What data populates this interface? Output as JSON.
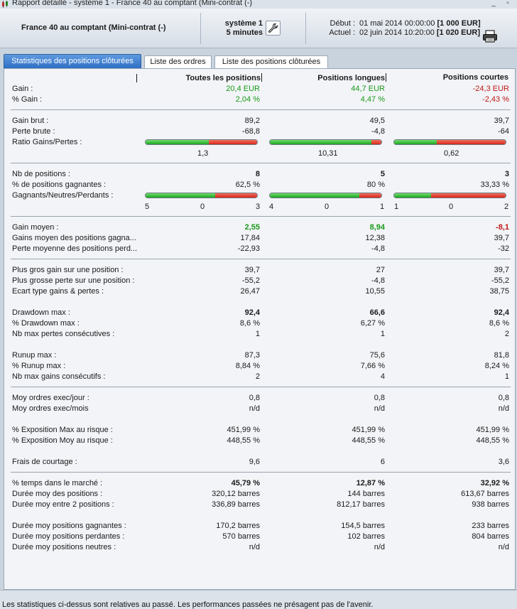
{
  "window": {
    "title": "Rapport détaillé - système 1 - France 40 au comptant (Mini-contrat  (-)"
  },
  "header": {
    "instrument": "France 40 au comptant (Mini-contrat  (-)",
    "system_line1": "système 1",
    "system_line2": "5 minutes",
    "debut_label": "Début :",
    "debut_value": "01 mai 2014 00:00:00",
    "debut_amount": "[1 000 EUR]",
    "actuel_label": "Actuel :",
    "actuel_value": "02 juin 2014 10:20:00",
    "actuel_amount": "[1 020 EUR]"
  },
  "tabs": [
    {
      "label": "Statistiques des positions clôturées"
    },
    {
      "label": "Liste des ordres"
    },
    {
      "label": "Liste des positions clôturées"
    }
  ],
  "columns": [
    "Toutes les positions",
    "Positions longues",
    "Positions courtes"
  ],
  "rows": {
    "gain": {
      "label": "Gain :",
      "values": [
        "20,4 EUR",
        "44,7 EUR",
        "-24,3 EUR"
      ]
    },
    "pct_gain": {
      "label": "% Gain :",
      "values": [
        "2,04 %",
        "4,47 %",
        "-2,43 %"
      ]
    },
    "gain_brut": {
      "label": "Gain brut :",
      "values": [
        "89,2",
        "49,5",
        "39,7"
      ]
    },
    "perte_brute": {
      "label": "Perte brute :",
      "values": [
        "-68,8",
        "-4,8",
        "-64"
      ]
    },
    "ratio": {
      "label": "Ratio Gains/Pertes :",
      "values": [
        "1,3",
        "10,31",
        "0,62"
      ]
    },
    "nb_positions": {
      "label": "Nb de positions :",
      "values": [
        "8",
        "5",
        "3"
      ]
    },
    "pct_gagnantes": {
      "label": "% de positions gagnantes :",
      "values": [
        "62,5 %",
        "80 %",
        "33,33 %"
      ]
    },
    "gnp": {
      "label": "Gagnants/Neutres/Perdants :",
      "values": [
        {
          "g": "5",
          "n": "0",
          "p": "3"
        },
        {
          "g": "4",
          "n": "0",
          "p": "1"
        },
        {
          "g": "1",
          "n": "0",
          "p": "2"
        }
      ]
    },
    "gain_moyen": {
      "label": "Gain moyen :",
      "values": [
        "2,55",
        "8,94",
        "-8,1"
      ]
    },
    "gains_moyen_gagn": {
      "label": "Gains moyen des positions gagna...",
      "values": [
        "17,84",
        "12,38",
        "39,7"
      ]
    },
    "perte_moy_perd": {
      "label": "Perte moyenne des positions perd...",
      "values": [
        "-22,93",
        "-4,8",
        "-32"
      ]
    },
    "plus_gros_gain": {
      "label": "Plus gros gain sur une position :",
      "values": [
        "39,7",
        "27",
        "39,7"
      ]
    },
    "plus_grosse_perte": {
      "label": "Plus grosse perte sur une position :",
      "values": [
        "-55,2",
        "-4,8",
        "-55,2"
      ]
    },
    "ecart_type": {
      "label": "Ecart type gains & pertes :",
      "values": [
        "26,47",
        "10,55",
        "38,75"
      ]
    },
    "drawdown": {
      "label": "Drawdown max :",
      "values": [
        "92,4",
        "66,6",
        "92,4"
      ]
    },
    "pct_drawdown": {
      "label": "% Drawdown max :",
      "values": [
        "8,6 %",
        "6,27 %",
        "8,6 %"
      ]
    },
    "nb_pertes_consec": {
      "label": "Nb max pertes consécutives :",
      "values": [
        "1",
        "1",
        "2"
      ]
    },
    "runup": {
      "label": "Runup max :",
      "values": [
        "87,3",
        "75,6",
        "81,8"
      ]
    },
    "pct_runup": {
      "label": "% Runup max :",
      "values": [
        "8,84 %",
        "7,66 %",
        "8,24 %"
      ]
    },
    "nb_gains_consec": {
      "label": "Nb max gains consécutifs :",
      "values": [
        "2",
        "4",
        "1"
      ]
    },
    "moy_jour": {
      "label": "Moy ordres exec/jour :",
      "values": [
        "0,8",
        "0,8",
        "0,8"
      ]
    },
    "moy_mois": {
      "label": "Moy ordres exec/mois",
      "values": [
        "n/d",
        "n/d",
        "n/d"
      ]
    },
    "expo_max": {
      "label": "% Exposition Max au risque :",
      "values": [
        "451,99 %",
        "451,99 %",
        "451,99 %"
      ]
    },
    "expo_moy": {
      "label": "% Exposition Moy au risque :",
      "values": [
        "448,55 %",
        "448,55 %",
        "448,55 %"
      ]
    },
    "frais": {
      "label": "Frais de courtage :",
      "values": [
        "9,6",
        "6",
        "3,6"
      ]
    },
    "temps_marche": {
      "label": "% temps dans le marché :",
      "values": [
        "45,79 %",
        "12,87 %",
        "32,92 %"
      ]
    },
    "duree_positions": {
      "label": "Durée moy des positions :",
      "values": [
        "320,12 barres",
        "144 barres",
        "613,67 barres"
      ]
    },
    "duree_entre": {
      "label": "Durée moy entre 2 positions :",
      "values": [
        "336,89 barres",
        "812,17 barres",
        "938 barres"
      ]
    },
    "duree_gagn": {
      "label": "Durée moy positions gagnantes :",
      "values": [
        "170,2 barres",
        "154,5 barres",
        "233 barres"
      ]
    },
    "duree_perd": {
      "label": "Durée moy positions perdantes :",
      "values": [
        "570 barres",
        "102 barres",
        "804 barres"
      ]
    },
    "duree_neutres": {
      "label": "Durée moy positions neutres :",
      "values": [
        "n/d",
        "n/d",
        "n/d"
      ]
    }
  },
  "gauges": {
    "ratio_green_fraction": [
      0.565,
      0.912,
      0.383
    ],
    "gnp_fractions": [
      {
        "g": 0.625,
        "n": 0,
        "p": 0.375
      },
      {
        "g": 0.8,
        "n": 0,
        "p": 0.2
      },
      {
        "g": 0.333,
        "n": 0,
        "p": 0.667
      }
    ]
  },
  "colors": {
    "positive": "#1a9a1a",
    "negative": "#c01818",
    "gauge_green": "#22aa22",
    "gauge_red": "#dd2c1c",
    "active_tab": "#3a7dd0"
  },
  "footer": {
    "note": "Les statistiques ci-dessus sont relatives au passé. Les performances passées ne présagent pas de l'avenir."
  }
}
